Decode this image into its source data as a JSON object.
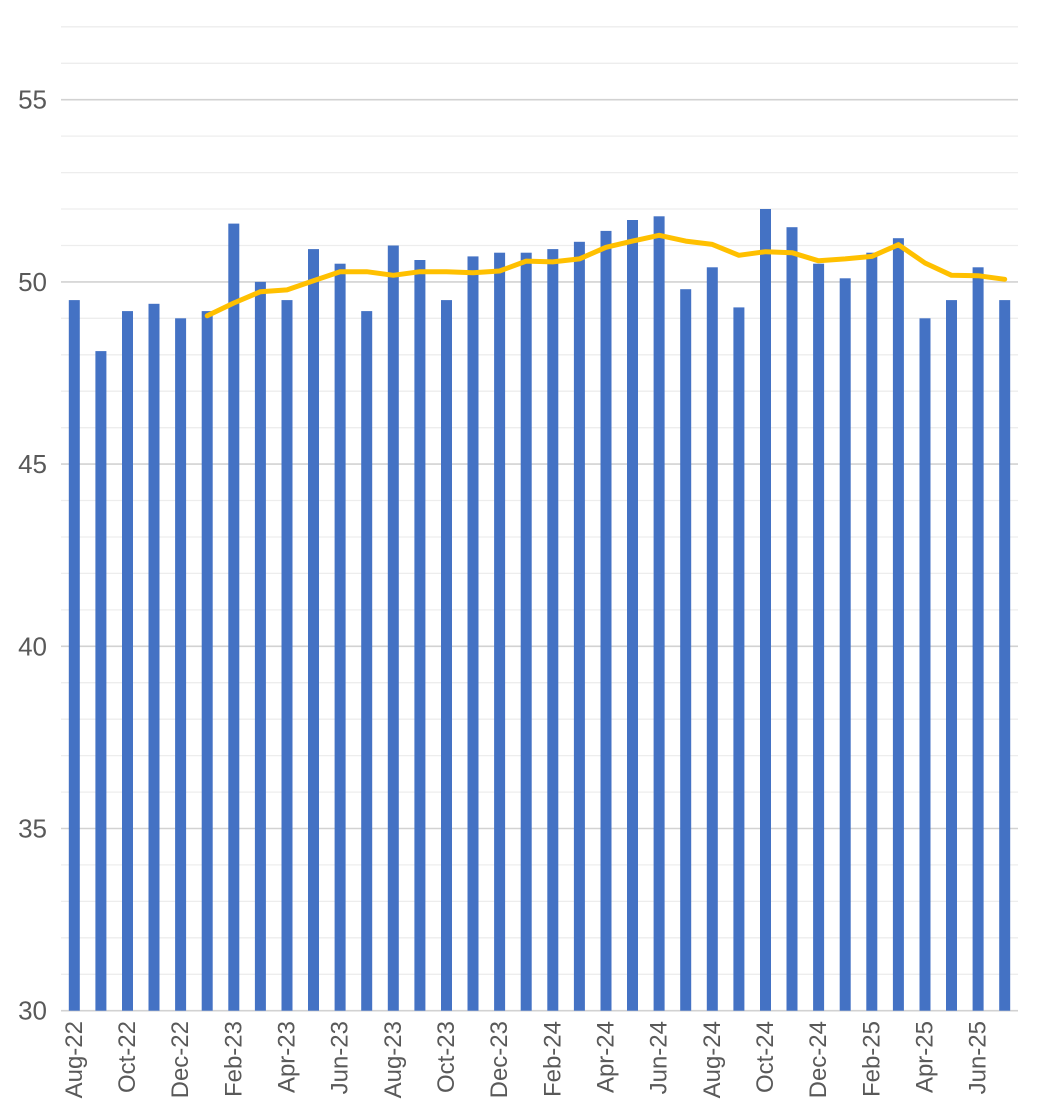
{
  "chart_data": {
    "type": "bar",
    "title": "",
    "xlabel": "",
    "ylabel": "",
    "categories": [
      "Aug-22",
      "Sep-22",
      "Oct-22",
      "Nov-22",
      "Dec-22",
      "Jan-23",
      "Feb-23",
      "Mar-23",
      "Apr-23",
      "May-23",
      "Jun-23",
      "Jul-23",
      "Aug-23",
      "Sep-23",
      "Oct-23",
      "Nov-23",
      "Dec-23",
      "Jan-24",
      "Feb-24",
      "Mar-24",
      "Apr-24",
      "May-24",
      "Jun-24",
      "Jul-24",
      "Aug-24",
      "Sep-24",
      "Oct-24",
      "Nov-24",
      "Dec-24",
      "Jan-25",
      "Feb-25",
      "Mar-25",
      "Apr-25",
      "May-25",
      "Jun-25",
      "Jul-25"
    ],
    "series": [
      {
        "id": "monthly-bars",
        "type": "bar",
        "color": "#4472C4",
        "values": [
          49.5,
          48.1,
          49.2,
          49.4,
          49.0,
          49.2,
          51.6,
          50.0,
          49.5,
          50.9,
          50.5,
          49.2,
          51.0,
          50.6,
          49.5,
          50.7,
          50.8,
          50.8,
          50.9,
          51.1,
          51.4,
          51.7,
          51.8,
          49.8,
          50.4,
          49.3,
          52.0,
          51.5,
          50.5,
          50.1,
          50.8,
          51.2,
          49.0,
          49.5,
          50.4,
          49.5
        ]
      },
      {
        "id": "six-month-moving-average-line",
        "type": "line",
        "color": "#FFC000",
        "values": [
          null,
          null,
          null,
          null,
          null,
          49.07,
          49.42,
          49.73,
          49.78,
          50.03,
          50.28,
          50.28,
          50.18,
          50.28,
          50.28,
          50.25,
          50.3,
          50.57,
          50.55,
          50.63,
          50.95,
          51.12,
          51.28,
          51.12,
          51.03,
          50.73,
          50.83,
          50.8,
          50.58,
          50.63,
          50.7,
          51.02,
          50.52,
          50.18,
          50.17,
          50.07
        ]
      }
    ],
    "x_tick_labels": [
      "Aug-22",
      "Oct-22",
      "Dec-22",
      "Feb-23",
      "Apr-23",
      "Jun-23",
      "Aug-23",
      "Oct-23",
      "Dec-23",
      "Feb-24",
      "Apr-24",
      "Jun-24",
      "Aug-24",
      "Oct-24",
      "Dec-24",
      "Feb-25",
      "Apr-25",
      "Jun-25"
    ],
    "x_tick_every": 2,
    "y_major_ticks": [
      30,
      35,
      40,
      45,
      50,
      55
    ],
    "y_minor_step": 1,
    "y_minor_max": 57,
    "ylim": [
      30,
      57.8
    ],
    "grid": true,
    "legend_position": "none",
    "colors": {
      "background": "#FFFFFF",
      "axis_label": "#595959",
      "gridline_minor": "#EDEDED",
      "gridline_major": "#D2D2D2"
    }
  }
}
